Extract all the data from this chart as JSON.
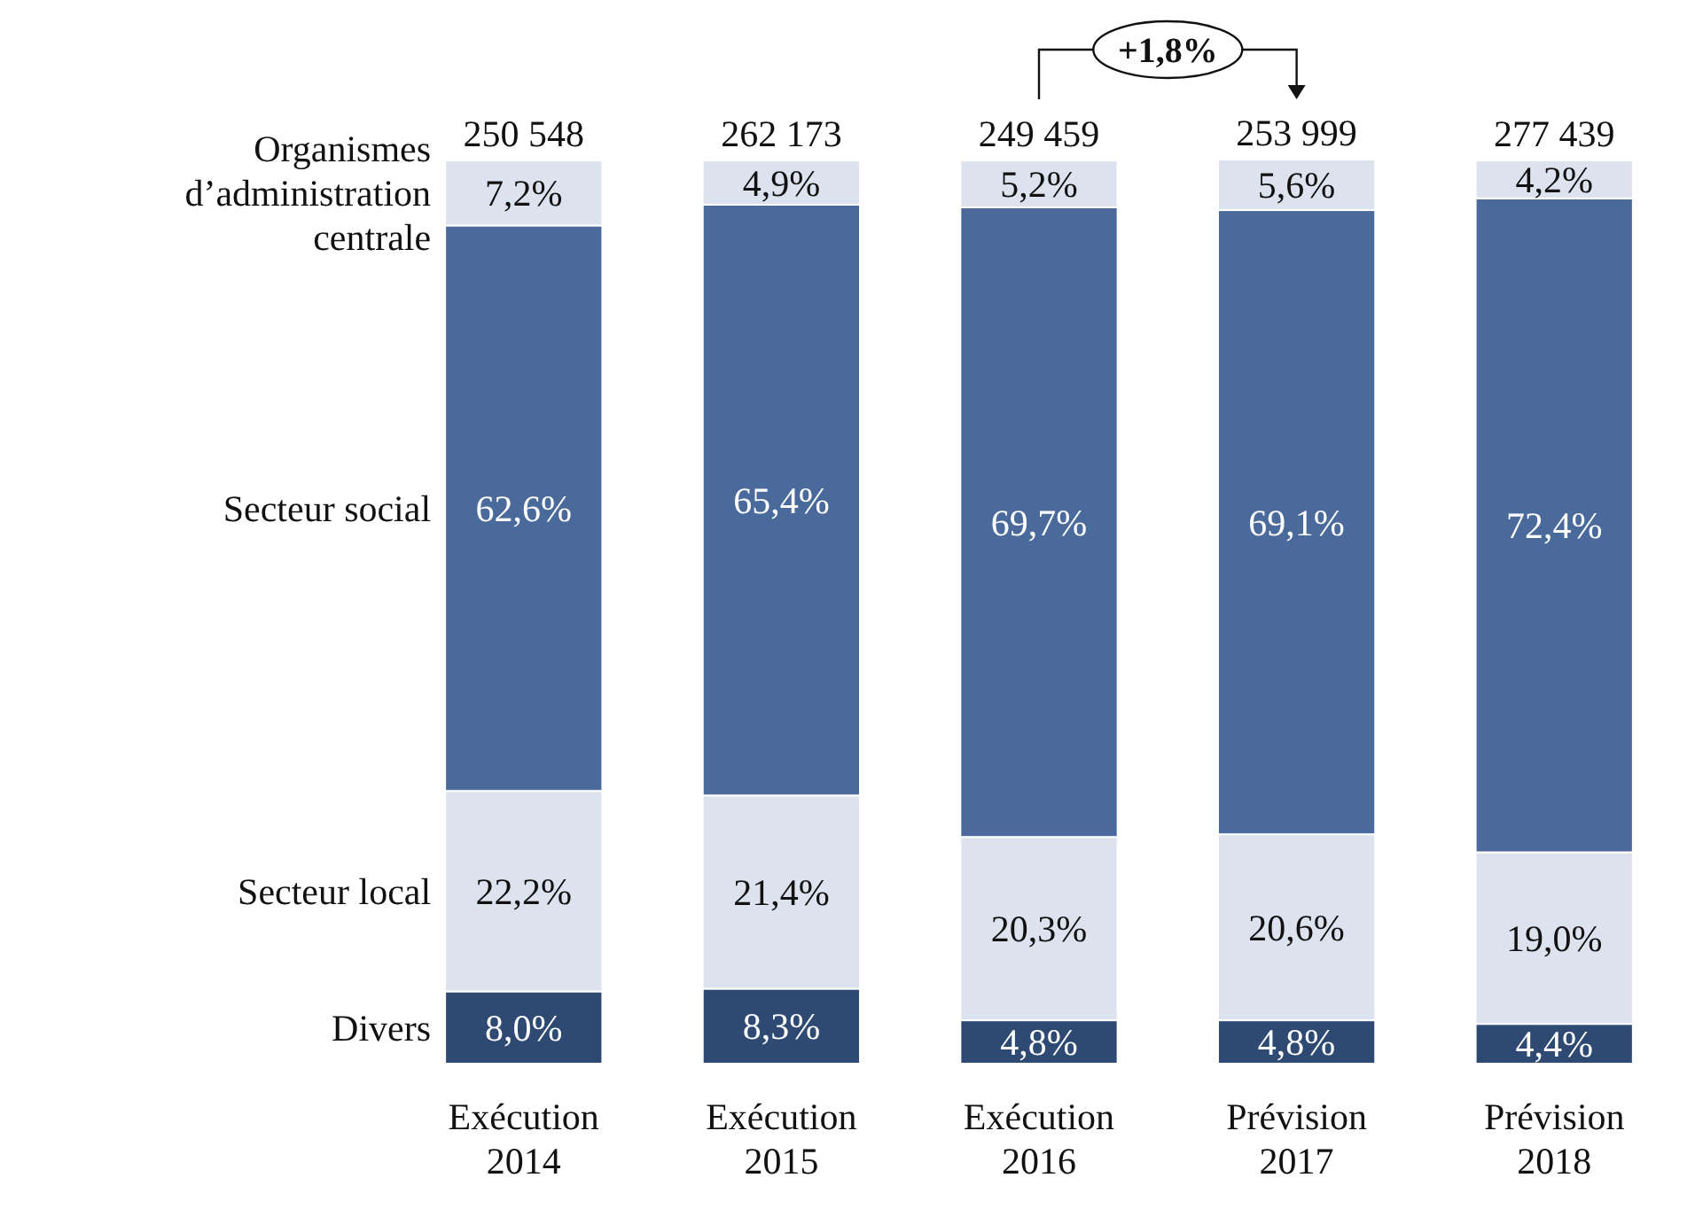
{
  "chart_data": {
    "type": "bar",
    "stacked": true,
    "legend": "left",
    "categories": [
      "Exécution 2014",
      "Exécution 2015",
      "Exécution 2016",
      "Prévision 2017",
      "Prévision 2018"
    ],
    "series": [
      {
        "name": "Divers",
        "color": "#2e4a73",
        "values": [
          8.0,
          8.3,
          4.8,
          4.8,
          4.4
        ],
        "value_labels": [
          "8,0%",
          "8,3%",
          "4,8%",
          "4,8%",
          "4,4%"
        ]
      },
      {
        "name": "Secteur local",
        "color": "#dce3ef",
        "values": [
          22.2,
          21.4,
          20.3,
          20.6,
          19.0
        ],
        "value_labels": [
          "22,2%",
          "21,4%",
          "20,3%",
          "20,6%",
          "19,0%"
        ]
      },
      {
        "name": "Secteur social",
        "color": "#4a6a9c",
        "values": [
          62.6,
          65.4,
          69.7,
          69.1,
          72.4
        ],
        "value_labels": [
          "62,6%",
          "65,4%",
          "69,7%",
          "69,1%",
          "72,4%"
        ]
      },
      {
        "name": "Organismes d’administration centrale",
        "color": "#dce3ef",
        "values": [
          7.2,
          4.9,
          5.2,
          5.6,
          4.2
        ],
        "value_labels": [
          "7,2%",
          "4,9%",
          "5,2%",
          "5,6%",
          "4,2%"
        ]
      }
    ],
    "annotations": [
      "250 548",
      "262 173",
      "249 459",
      "253 999",
      "277 439",
      "+1,8%"
    ]
  }
}
